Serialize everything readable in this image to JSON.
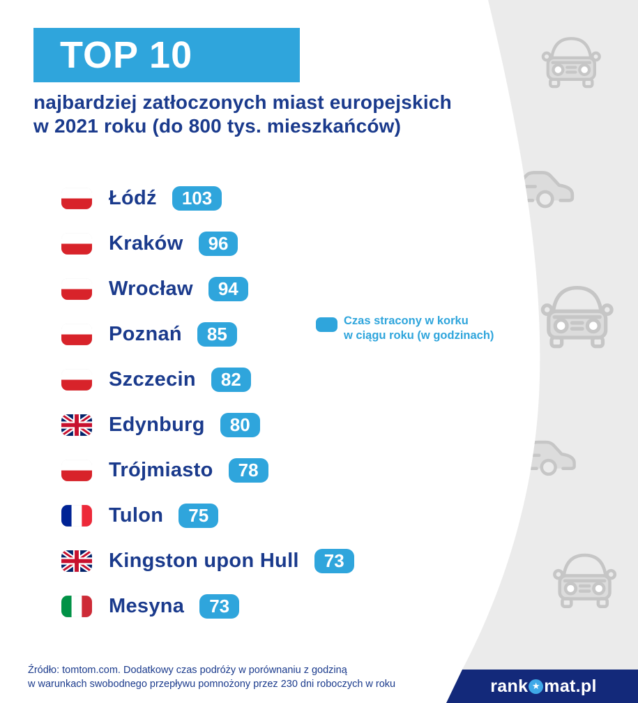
{
  "header": {
    "banner": "TOP 10",
    "subtitle_line1": "najbardziej zatłoczonych miast europejskich",
    "subtitle_line2": "w 2021 roku (do 800 tys. mieszkańców)"
  },
  "legend": {
    "line1": "Czas stracony w korku",
    "line2": "w ciągu roku (w godzinach)"
  },
  "chart_data": {
    "type": "bar",
    "title": "TOP 10 najbardziej zatłoczonych miast europejskich w 2021 roku (do 800 tys. mieszkańców)",
    "value_label": "Czas stracony w korku w ciągu roku (w godzinach)",
    "categories": [
      "Łódź",
      "Kraków",
      "Wrocław",
      "Poznań",
      "Szczecin",
      "Edynburg",
      "Trójmiasto",
      "Tulon",
      "Kingston upon Hull",
      "Mesyna"
    ],
    "values": [
      103,
      96,
      94,
      85,
      82,
      80,
      78,
      75,
      73,
      73
    ],
    "flags": [
      "pl",
      "pl",
      "pl",
      "pl",
      "pl",
      "gb",
      "pl",
      "fr",
      "gb",
      "it"
    ]
  },
  "footer": {
    "source_line1": "Źródło: tomtom.com. Dodatkowy czas podróży w porównaniu z godziną",
    "source_line2": "w warunkach swobodnego przepływu pomnożony przez 230 dni roboczych w roku",
    "logo_prefix": "rank",
    "logo_suffix": "mat.pl"
  },
  "icons": {
    "star": "★"
  },
  "colors": {
    "accent": "#2FA5DC",
    "navy_text": "#1A3A8C",
    "band_navy": "#13297A",
    "panel_grey": "#EBEBEB",
    "car_grey": "#C6C6C6",
    "flag_red": "#D8232A"
  }
}
